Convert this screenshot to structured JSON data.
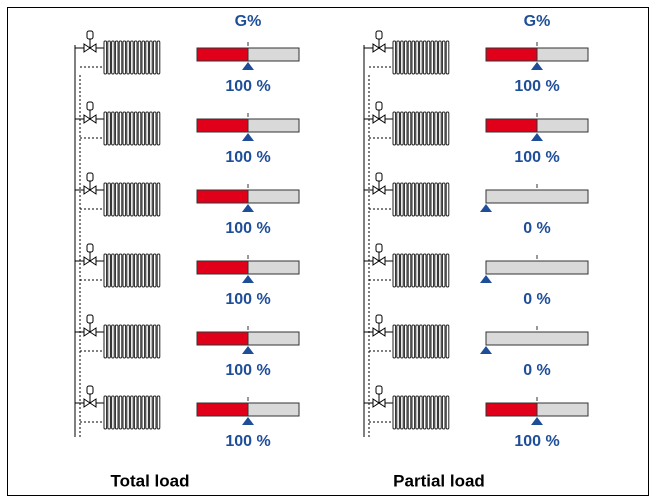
{
  "columns": [
    {
      "header": "G%",
      "caption": "Total load",
      "rows": [
        {
          "value": 100,
          "label": "100 %"
        },
        {
          "value": 100,
          "label": "100 %"
        },
        {
          "value": 100,
          "label": "100 %"
        },
        {
          "value": 100,
          "label": "100 %"
        },
        {
          "value": 100,
          "label": "100 %"
        },
        {
          "value": 100,
          "label": "100 %"
        }
      ]
    },
    {
      "header": "G%",
      "caption": "Partial load",
      "rows": [
        {
          "value": 100,
          "label": "100 %"
        },
        {
          "value": 100,
          "label": "100 %"
        },
        {
          "value": 0,
          "label": "0 %"
        },
        {
          "value": 0,
          "label": "0 %"
        },
        {
          "value": 0,
          "label": "0 %"
        },
        {
          "value": 100,
          "label": "100 %"
        }
      ]
    }
  ]
}
